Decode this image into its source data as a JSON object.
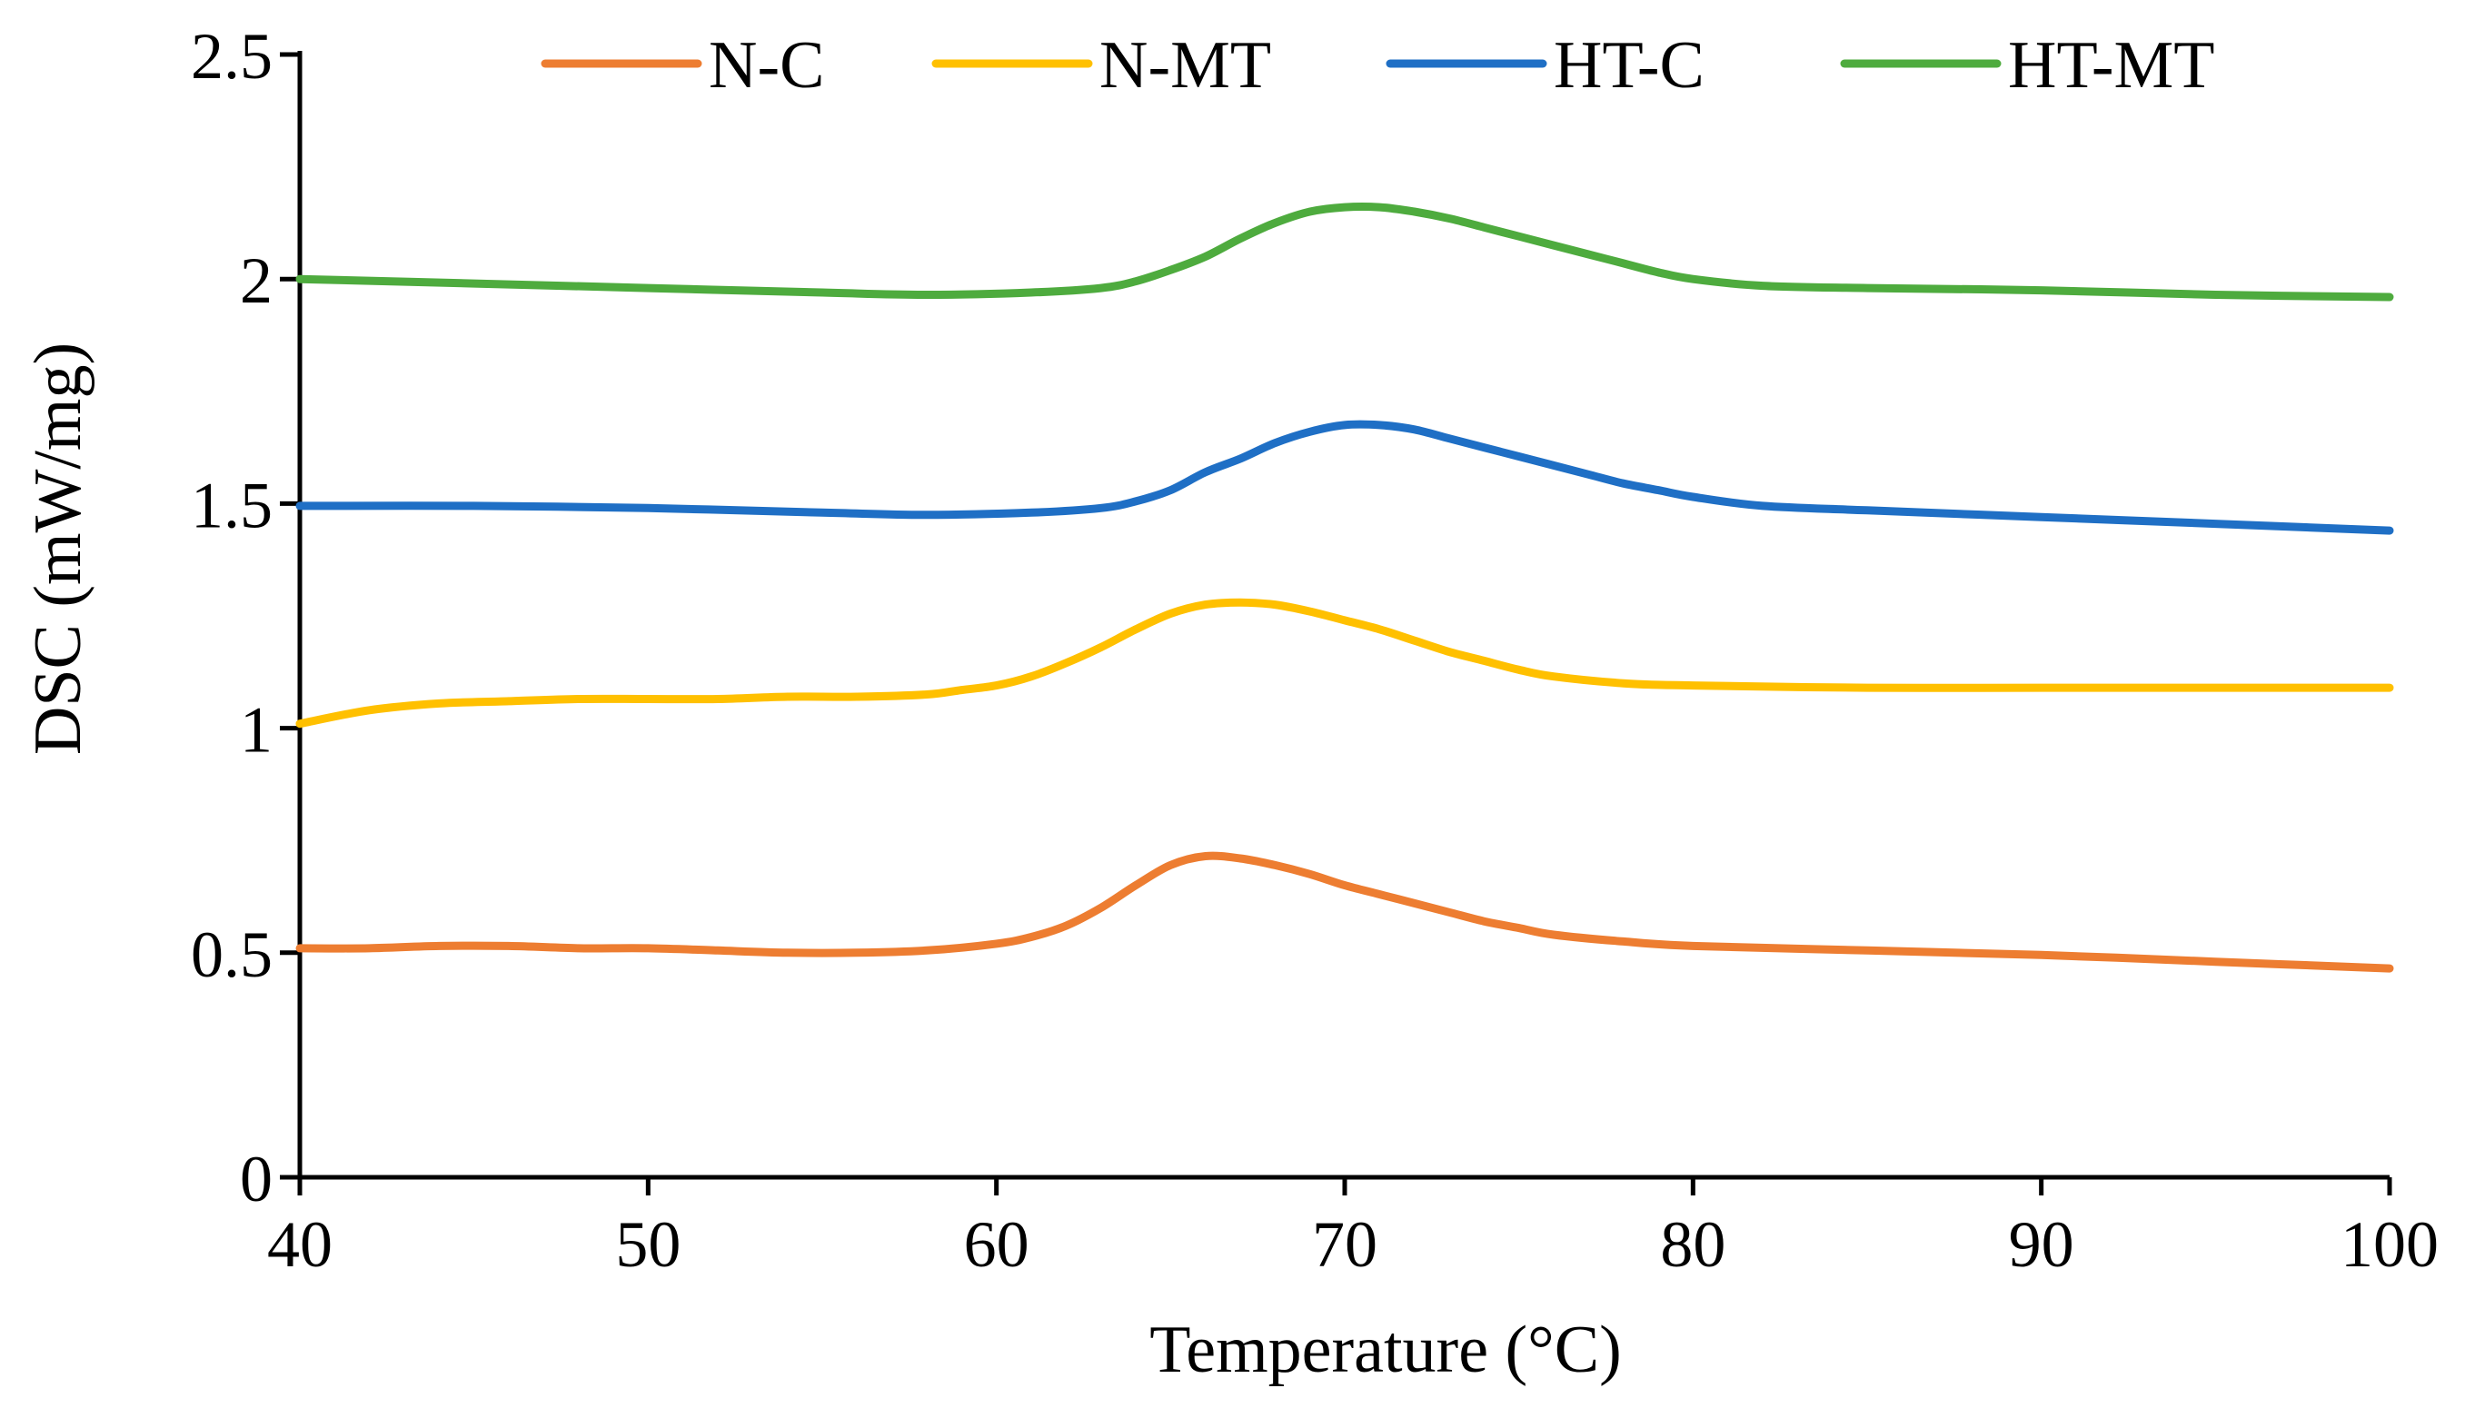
{
  "chart_data": {
    "type": "line",
    "title": "",
    "xlabel": "Temperature (°C)",
    "ylabel": "DSC (mW/mg)",
    "xlim": [
      40,
      100
    ],
    "ylim": [
      0,
      2.5
    ],
    "x_ticks": [
      40,
      50,
      60,
      70,
      80,
      90,
      100
    ],
    "y_ticks": [
      0,
      0.5,
      1,
      1.5,
      2,
      2.5
    ],
    "x_tick_labels": [
      "40",
      "50",
      "60",
      "70",
      "80",
      "90",
      "100"
    ],
    "y_tick_labels": [
      "0",
      "0.5",
      "1",
      "1.5",
      "2",
      "2.5"
    ],
    "grid": false,
    "legend_position": "top",
    "series": [
      {
        "name": "N-C",
        "color": "#ED7D31",
        "points": [
          [
            40,
            0.51
          ],
          [
            42,
            0.51
          ],
          [
            44,
            0.515
          ],
          [
            46,
            0.515
          ],
          [
            48,
            0.51
          ],
          [
            50,
            0.51
          ],
          [
            52,
            0.505
          ],
          [
            54,
            0.5
          ],
          [
            56,
            0.5
          ],
          [
            58,
            0.505
          ],
          [
            60,
            0.52
          ],
          [
            61,
            0.535
          ],
          [
            62,
            0.56
          ],
          [
            63,
            0.6
          ],
          [
            64,
            0.65
          ],
          [
            65,
            0.695
          ],
          [
            66,
            0.715
          ],
          [
            67,
            0.71
          ],
          [
            68,
            0.695
          ],
          [
            69,
            0.675
          ],
          [
            70,
            0.65
          ],
          [
            71,
            0.63
          ],
          [
            72,
            0.61
          ],
          [
            73,
            0.59
          ],
          [
            74,
            0.57
          ],
          [
            75,
            0.555
          ],
          [
            76,
            0.54
          ],
          [
            78,
            0.525
          ],
          [
            80,
            0.515
          ],
          [
            85,
            0.505
          ],
          [
            90,
            0.495
          ],
          [
            95,
            0.48
          ],
          [
            100,
            0.465
          ]
        ]
      },
      {
        "name": "N-MT",
        "color": "#FFC000",
        "points": [
          [
            40,
            1.01
          ],
          [
            42,
            1.04
          ],
          [
            44,
            1.055
          ],
          [
            46,
            1.06
          ],
          [
            48,
            1.065
          ],
          [
            50,
            1.065
          ],
          [
            52,
            1.065
          ],
          [
            54,
            1.07
          ],
          [
            56,
            1.07
          ],
          [
            58,
            1.075
          ],
          [
            59,
            1.085
          ],
          [
            60,
            1.095
          ],
          [
            61,
            1.115
          ],
          [
            62,
            1.145
          ],
          [
            63,
            1.18
          ],
          [
            64,
            1.22
          ],
          [
            65,
            1.255
          ],
          [
            66,
            1.275
          ],
          [
            67,
            1.28
          ],
          [
            68,
            1.275
          ],
          [
            69,
            1.26
          ],
          [
            70,
            1.24
          ],
          [
            71,
            1.22
          ],
          [
            72,
            1.195
          ],
          [
            73,
            1.17
          ],
          [
            74,
            1.15
          ],
          [
            75,
            1.13
          ],
          [
            76,
            1.115
          ],
          [
            78,
            1.1
          ],
          [
            80,
            1.095
          ],
          [
            85,
            1.09
          ],
          [
            90,
            1.09
          ],
          [
            95,
            1.09
          ],
          [
            100,
            1.09
          ]
        ]
      },
      {
        "name": "HT-C",
        "color": "#1F6FC5",
        "points": [
          [
            40,
            1.495
          ],
          [
            45,
            1.495
          ],
          [
            50,
            1.49
          ],
          [
            55,
            1.48
          ],
          [
            58,
            1.475
          ],
          [
            61,
            1.48
          ],
          [
            63,
            1.49
          ],
          [
            64,
            1.505
          ],
          [
            65,
            1.53
          ],
          [
            66,
            1.57
          ],
          [
            67,
            1.6
          ],
          [
            68,
            1.635
          ],
          [
            69,
            1.66
          ],
          [
            70,
            1.675
          ],
          [
            71,
            1.675
          ],
          [
            72,
            1.665
          ],
          [
            73,
            1.645
          ],
          [
            74,
            1.625
          ],
          [
            75,
            1.605
          ],
          [
            76,
            1.585
          ],
          [
            77,
            1.565
          ],
          [
            78,
            1.545
          ],
          [
            79,
            1.53
          ],
          [
            80,
            1.515
          ],
          [
            82,
            1.495
          ],
          [
            85,
            1.485
          ],
          [
            90,
            1.47
          ],
          [
            95,
            1.455
          ],
          [
            100,
            1.44
          ]
        ]
      },
      {
        "name": "HT-MT",
        "color": "#4EAB3E",
        "points": [
          [
            40,
            2.0
          ],
          [
            45,
            1.99
          ],
          [
            50,
            1.98
          ],
          [
            55,
            1.97
          ],
          [
            58,
            1.965
          ],
          [
            61,
            1.97
          ],
          [
            63,
            1.98
          ],
          [
            64,
            1.995
          ],
          [
            65,
            2.02
          ],
          [
            66,
            2.05
          ],
          [
            67,
            2.09
          ],
          [
            68,
            2.125
          ],
          [
            69,
            2.15
          ],
          [
            70,
            2.16
          ],
          [
            71,
            2.16
          ],
          [
            72,
            2.15
          ],
          [
            73,
            2.135
          ],
          [
            74,
            2.115
          ],
          [
            75,
            2.095
          ],
          [
            76,
            2.075
          ],
          [
            77,
            2.055
          ],
          [
            78,
            2.035
          ],
          [
            79,
            2.015
          ],
          [
            80,
            2.0
          ],
          [
            82,
            1.985
          ],
          [
            85,
            1.98
          ],
          [
            90,
            1.975
          ],
          [
            95,
            1.965
          ],
          [
            100,
            1.96
          ]
        ]
      }
    ]
  }
}
